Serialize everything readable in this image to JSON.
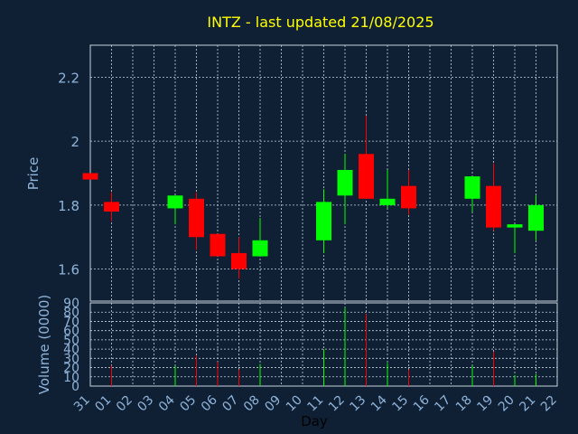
{
  "chart_data": {
    "type": "candlestick",
    "title": "INTZ - last updated 21/08/2025",
    "xlabel": "Day",
    "x_ticks": [
      "31",
      "01",
      "02",
      "03",
      "04",
      "05",
      "06",
      "07",
      "08",
      "09",
      "10",
      "11",
      "12",
      "13",
      "14",
      "15",
      "16",
      "17",
      "18",
      "19",
      "20",
      "21",
      "22"
    ],
    "price_panel": {
      "ylabel": "Price",
      "ylim": [
        1.5,
        2.3
      ],
      "y_ticks": [
        "1.6",
        "1.8",
        "2",
        "2.2"
      ],
      "grid": true
    },
    "volume_panel": {
      "ylabel": "Volume (0000)",
      "ylim": [
        0,
        90
      ],
      "y_ticks": [
        "0",
        "10",
        "20",
        "30",
        "40",
        "50",
        "60",
        "70",
        "80",
        "90"
      ],
      "grid": true
    },
    "candles": [
      {
        "day": "31",
        "open": 1.9,
        "high": 1.9,
        "low": 1.88,
        "close": 1.88,
        "volume": 0
      },
      {
        "day": "01",
        "open": 1.81,
        "high": 1.84,
        "low": 1.75,
        "close": 1.78,
        "volume": 22
      },
      {
        "day": "04",
        "open": 1.79,
        "high": 1.83,
        "low": 1.74,
        "close": 1.83,
        "volume": 22
      },
      {
        "day": "05",
        "open": 1.82,
        "high": 1.84,
        "low": 1.66,
        "close": 1.7,
        "volume": 33
      },
      {
        "day": "06",
        "open": 1.71,
        "high": 1.71,
        "low": 1.64,
        "close": 1.64,
        "volume": 26
      },
      {
        "day": "07",
        "open": 1.65,
        "high": 1.7,
        "low": 1.57,
        "close": 1.6,
        "volume": 18
      },
      {
        "day": "08",
        "open": 1.64,
        "high": 1.76,
        "low": 1.64,
        "close": 1.69,
        "volume": 24
      },
      {
        "day": "11",
        "open": 1.69,
        "high": 1.85,
        "low": 1.65,
        "close": 1.81,
        "volume": 40
      },
      {
        "day": "12",
        "open": 1.83,
        "high": 1.96,
        "low": 1.74,
        "close": 1.91,
        "volume": 85
      },
      {
        "day": "13",
        "open": 1.96,
        "high": 2.08,
        "low": 1.82,
        "close": 1.82,
        "volume": 78
      },
      {
        "day": "14",
        "open": 1.8,
        "high": 1.91,
        "low": 1.79,
        "close": 1.82,
        "volume": 25
      },
      {
        "day": "15",
        "open": 1.86,
        "high": 1.91,
        "low": 1.77,
        "close": 1.79,
        "volume": 18
      },
      {
        "day": "18",
        "open": 1.82,
        "high": 1.89,
        "low": 1.78,
        "close": 1.89,
        "volume": 22
      },
      {
        "day": "19",
        "open": 1.86,
        "high": 1.93,
        "low": 1.72,
        "close": 1.73,
        "volume": 37
      },
      {
        "day": "20",
        "open": 1.73,
        "high": 1.74,
        "low": 1.65,
        "close": 1.74,
        "volume": 12
      },
      {
        "day": "21",
        "open": 1.72,
        "high": 1.83,
        "low": 1.69,
        "close": 1.8,
        "volume": 13
      }
    ]
  },
  "colors": {
    "background": "#0f2035",
    "title": "#ffff00",
    "axis_text": "#8fb3d9",
    "grid": "#c8d2dc",
    "up": "#00ff00",
    "down": "#ff0000"
  }
}
